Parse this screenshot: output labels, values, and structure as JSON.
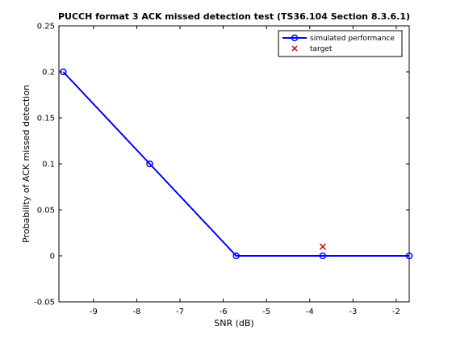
{
  "chart_data": {
    "type": "line",
    "title": "PUCCH format 3 ACK missed detection test (TS36.104 Section 8.3.6.1)",
    "xlabel": "SNR (dB)",
    "ylabel": "Probability of ACK missed detection",
    "xlim": [
      -9.8,
      -1.7
    ],
    "ylim": [
      -0.05,
      0.25
    ],
    "xticks": [
      -9,
      -8,
      -7,
      -6,
      -5,
      -4,
      -3,
      -2
    ],
    "yticks": [
      -0.05,
      0,
      0.05,
      0.1,
      0.15,
      0.2,
      0.25
    ],
    "xtick_labels": [
      "-9",
      "-8",
      "-7",
      "-6",
      "-5",
      "-4",
      "-3",
      "-2"
    ],
    "ytick_labels": [
      "-0.05",
      "0",
      "0.05",
      "0.1",
      "0.15",
      "0.2",
      "0.25"
    ],
    "grid": false,
    "legend_position": "top-right",
    "series": [
      {
        "name": "simulated performance",
        "marker": "o",
        "color": "#0000ff",
        "x": [
          -9.7,
          -7.7,
          -5.7,
          -3.7,
          -1.7
        ],
        "y": [
          0.2,
          0.1,
          0.0,
          0.0,
          0.0
        ]
      },
      {
        "name": "target",
        "marker": "x",
        "color": "#cc0000",
        "x": [
          -3.7
        ],
        "y": [
          0.01
        ]
      }
    ]
  }
}
